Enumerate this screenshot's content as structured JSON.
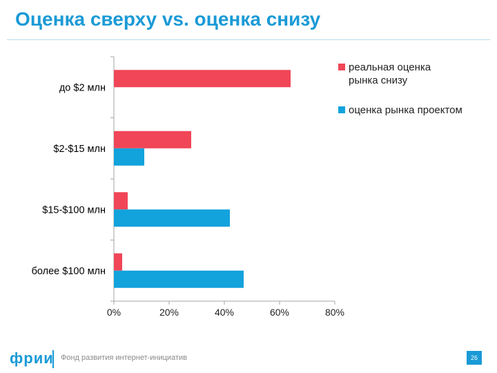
{
  "title": "Оценка сверху vs. оценка снизу",
  "footer": {
    "logo": "фрии",
    "text": "Фонд развития интернет-инициатив",
    "page_number": "26"
  },
  "colors": {
    "title": "#1a9ad6",
    "series1": "#f04657",
    "series2": "#12a2dc"
  },
  "chart_data": {
    "type": "bar",
    "orientation": "horizontal",
    "categories": [
      "до $2 млн",
      "$2-$15 млн",
      "$15-$100 млн",
      "более $100 млн"
    ],
    "series": [
      {
        "name": "реальная оценка рынка снизу",
        "values": [
          64,
          28,
          5,
          3
        ],
        "color": "#f04657"
      },
      {
        "name": "оценка рынка проектом",
        "values": [
          0,
          11,
          42,
          47
        ],
        "color": "#12a2dc"
      }
    ],
    "xlim": [
      0,
      80
    ],
    "xticks": [
      "0%",
      "20%",
      "40%",
      "60%",
      "80%"
    ],
    "legend_position": "top-right",
    "grid": false
  }
}
